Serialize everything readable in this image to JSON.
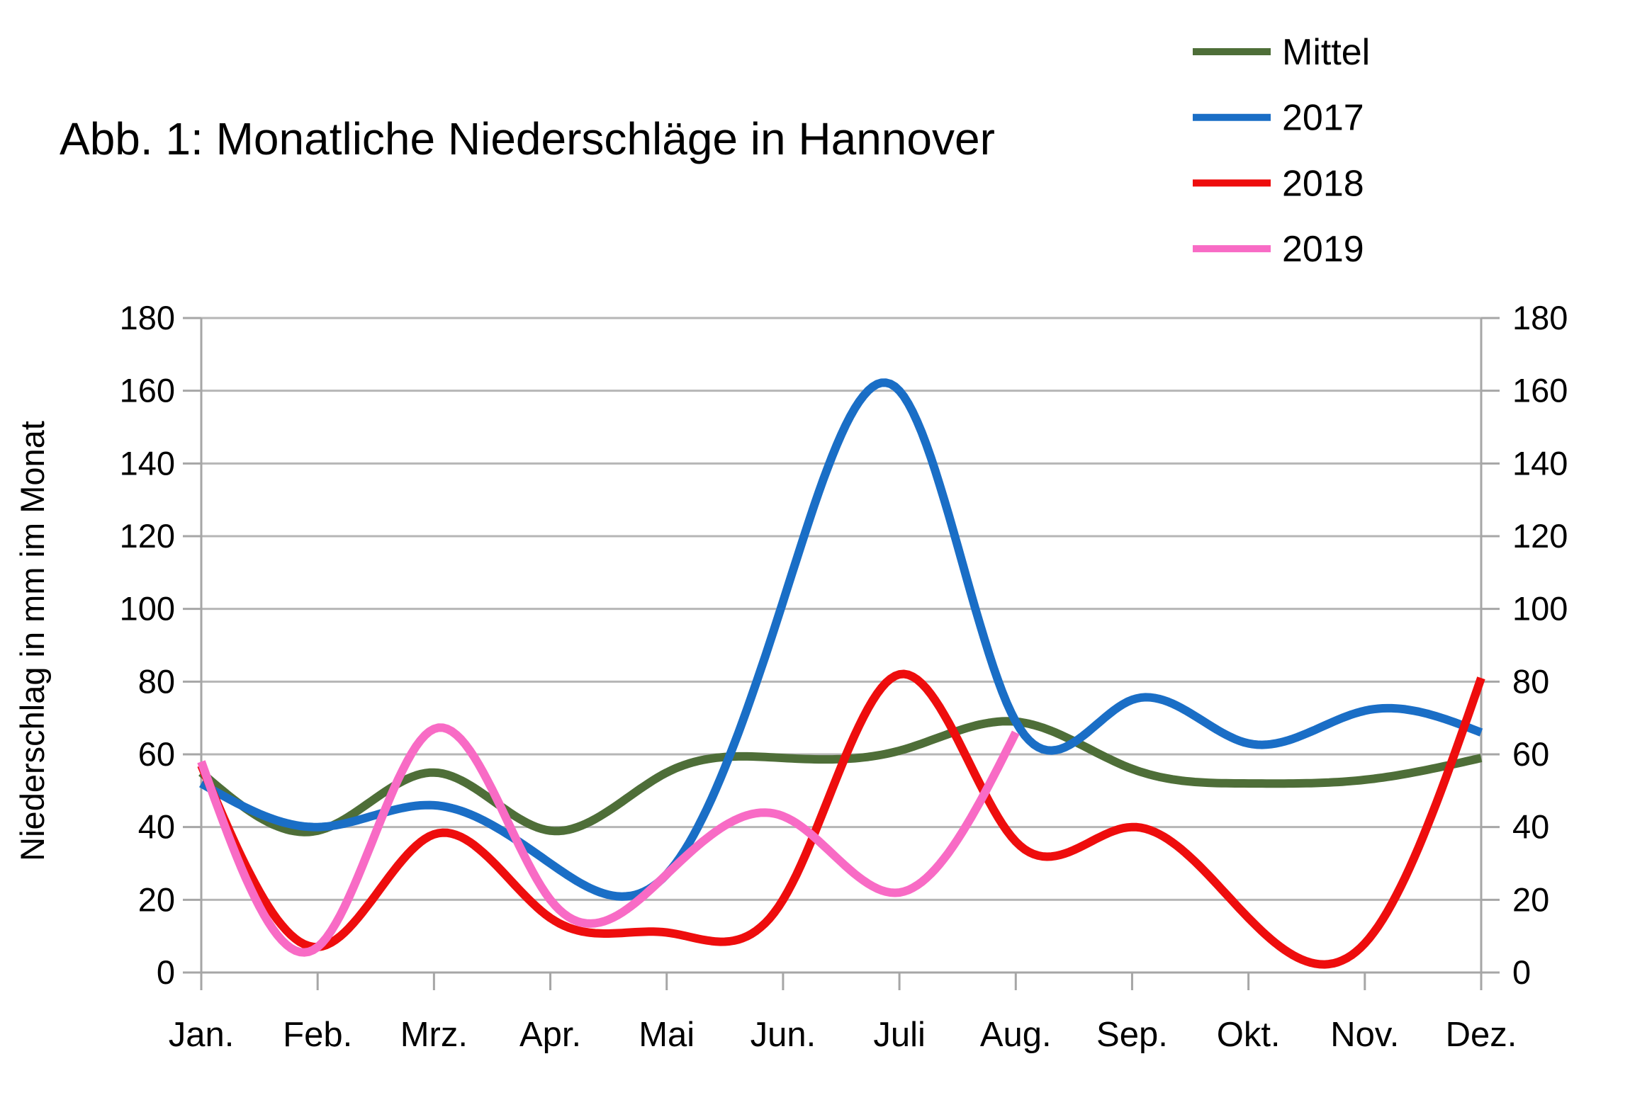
{
  "title": "Abb. 1: Monatliche Niederschläge in Hannover",
  "y_axis_title": "Niederschlag in mm im Monat",
  "chart_data": {
    "type": "line",
    "smooth": true,
    "title": "Abb. 1: Monatliche Niederschläge in Hannover",
    "ylabel": "Niederschlag in mm im Monat",
    "categories": [
      "Jan.",
      "Feb.",
      "Mrz.",
      "Apr.",
      "Mai",
      "Jun.",
      "Juli",
      "Aug.",
      "Sep.",
      "Okt.",
      "Nov.",
      "Dez."
    ],
    "ylim": [
      0,
      180
    ],
    "ytick_step": 20,
    "grid": true,
    "dual_y_axis": true,
    "legend_position": "top-right",
    "legend_entries": [
      "Mittel",
      "2017",
      "2018",
      "2019"
    ],
    "series": [
      {
        "name": "Mittel",
        "color": "#4e6e38",
        "values": [
          55,
          39,
          55,
          39,
          55,
          59,
          61,
          69,
          56,
          52,
          53,
          59
        ]
      },
      {
        "name": "2017",
        "color": "#1a6ec6",
        "values": [
          52,
          40,
          46,
          30,
          27,
          102,
          160,
          69,
          75,
          63,
          72,
          66
        ]
      },
      {
        "name": "2018",
        "color": "#ee0d0d",
        "values": [
          57,
          7,
          38,
          15,
          11,
          20,
          82,
          36,
          40,
          15,
          8,
          81
        ]
      },
      {
        "name": "2019",
        "color": "#f86bc5",
        "values": [
          58,
          7,
          67,
          20,
          27,
          43,
          22,
          66
        ]
      }
    ]
  },
  "colors": {
    "background": "#ffffff",
    "grid": "#b6b6b6",
    "axis": "#a6a6a6",
    "text": "#000000"
  }
}
